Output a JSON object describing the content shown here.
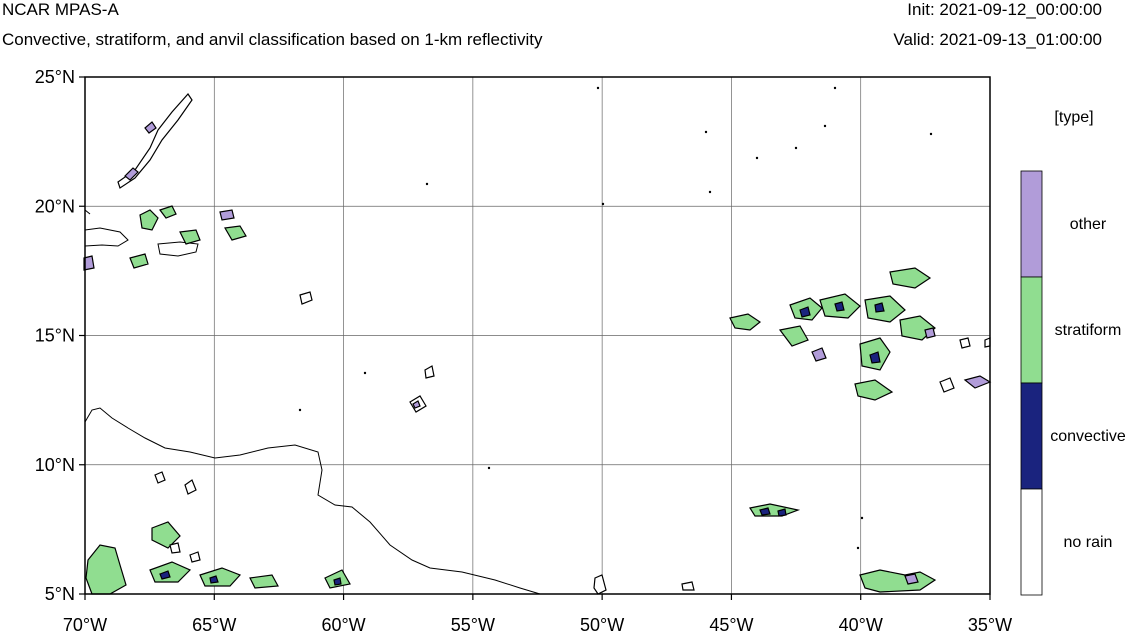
{
  "header": {
    "model": "NCAR MPAS-A",
    "subtitle": "Convective, stratiform, and anvil classification based on 1-km reflectivity",
    "init": "Init: 2021-09-12_00:00:00",
    "valid": "Valid: 2021-09-13_01:00:00"
  },
  "map": {
    "lon_range": [
      -70,
      -35
    ],
    "lat_range": [
      5,
      25
    ],
    "lon_ticks": [
      {
        "value": -70,
        "label": "70°W"
      },
      {
        "value": -65,
        "label": "65°W"
      },
      {
        "value": -60,
        "label": "60°W"
      },
      {
        "value": -55,
        "label": "55°W"
      },
      {
        "value": -50,
        "label": "50°W"
      },
      {
        "value": -45,
        "label": "45°W"
      },
      {
        "value": -40,
        "label": "40°W"
      },
      {
        "value": -35,
        "label": "35°W"
      }
    ],
    "lat_ticks": [
      {
        "value": 5,
        "label": "5°N"
      },
      {
        "value": 10,
        "label": "10°N"
      },
      {
        "value": 15,
        "label": "15°N"
      },
      {
        "value": 20,
        "label": "20°N"
      },
      {
        "value": 25,
        "label": "25°N"
      }
    ],
    "gridlines": true
  },
  "legend": {
    "title": "[type]",
    "classes": [
      {
        "label": "other",
        "color": "#b19cd9"
      },
      {
        "label": "stratiform",
        "color": "#90dd90"
      },
      {
        "label": "convective",
        "color": "#1a237e"
      },
      {
        "label": "no rain",
        "color": "#ffffff"
      }
    ]
  },
  "colors": {
    "other": "#b19cd9",
    "stratiform": "#90dd90",
    "convective": "#1a237e",
    "outline": "#000000"
  }
}
